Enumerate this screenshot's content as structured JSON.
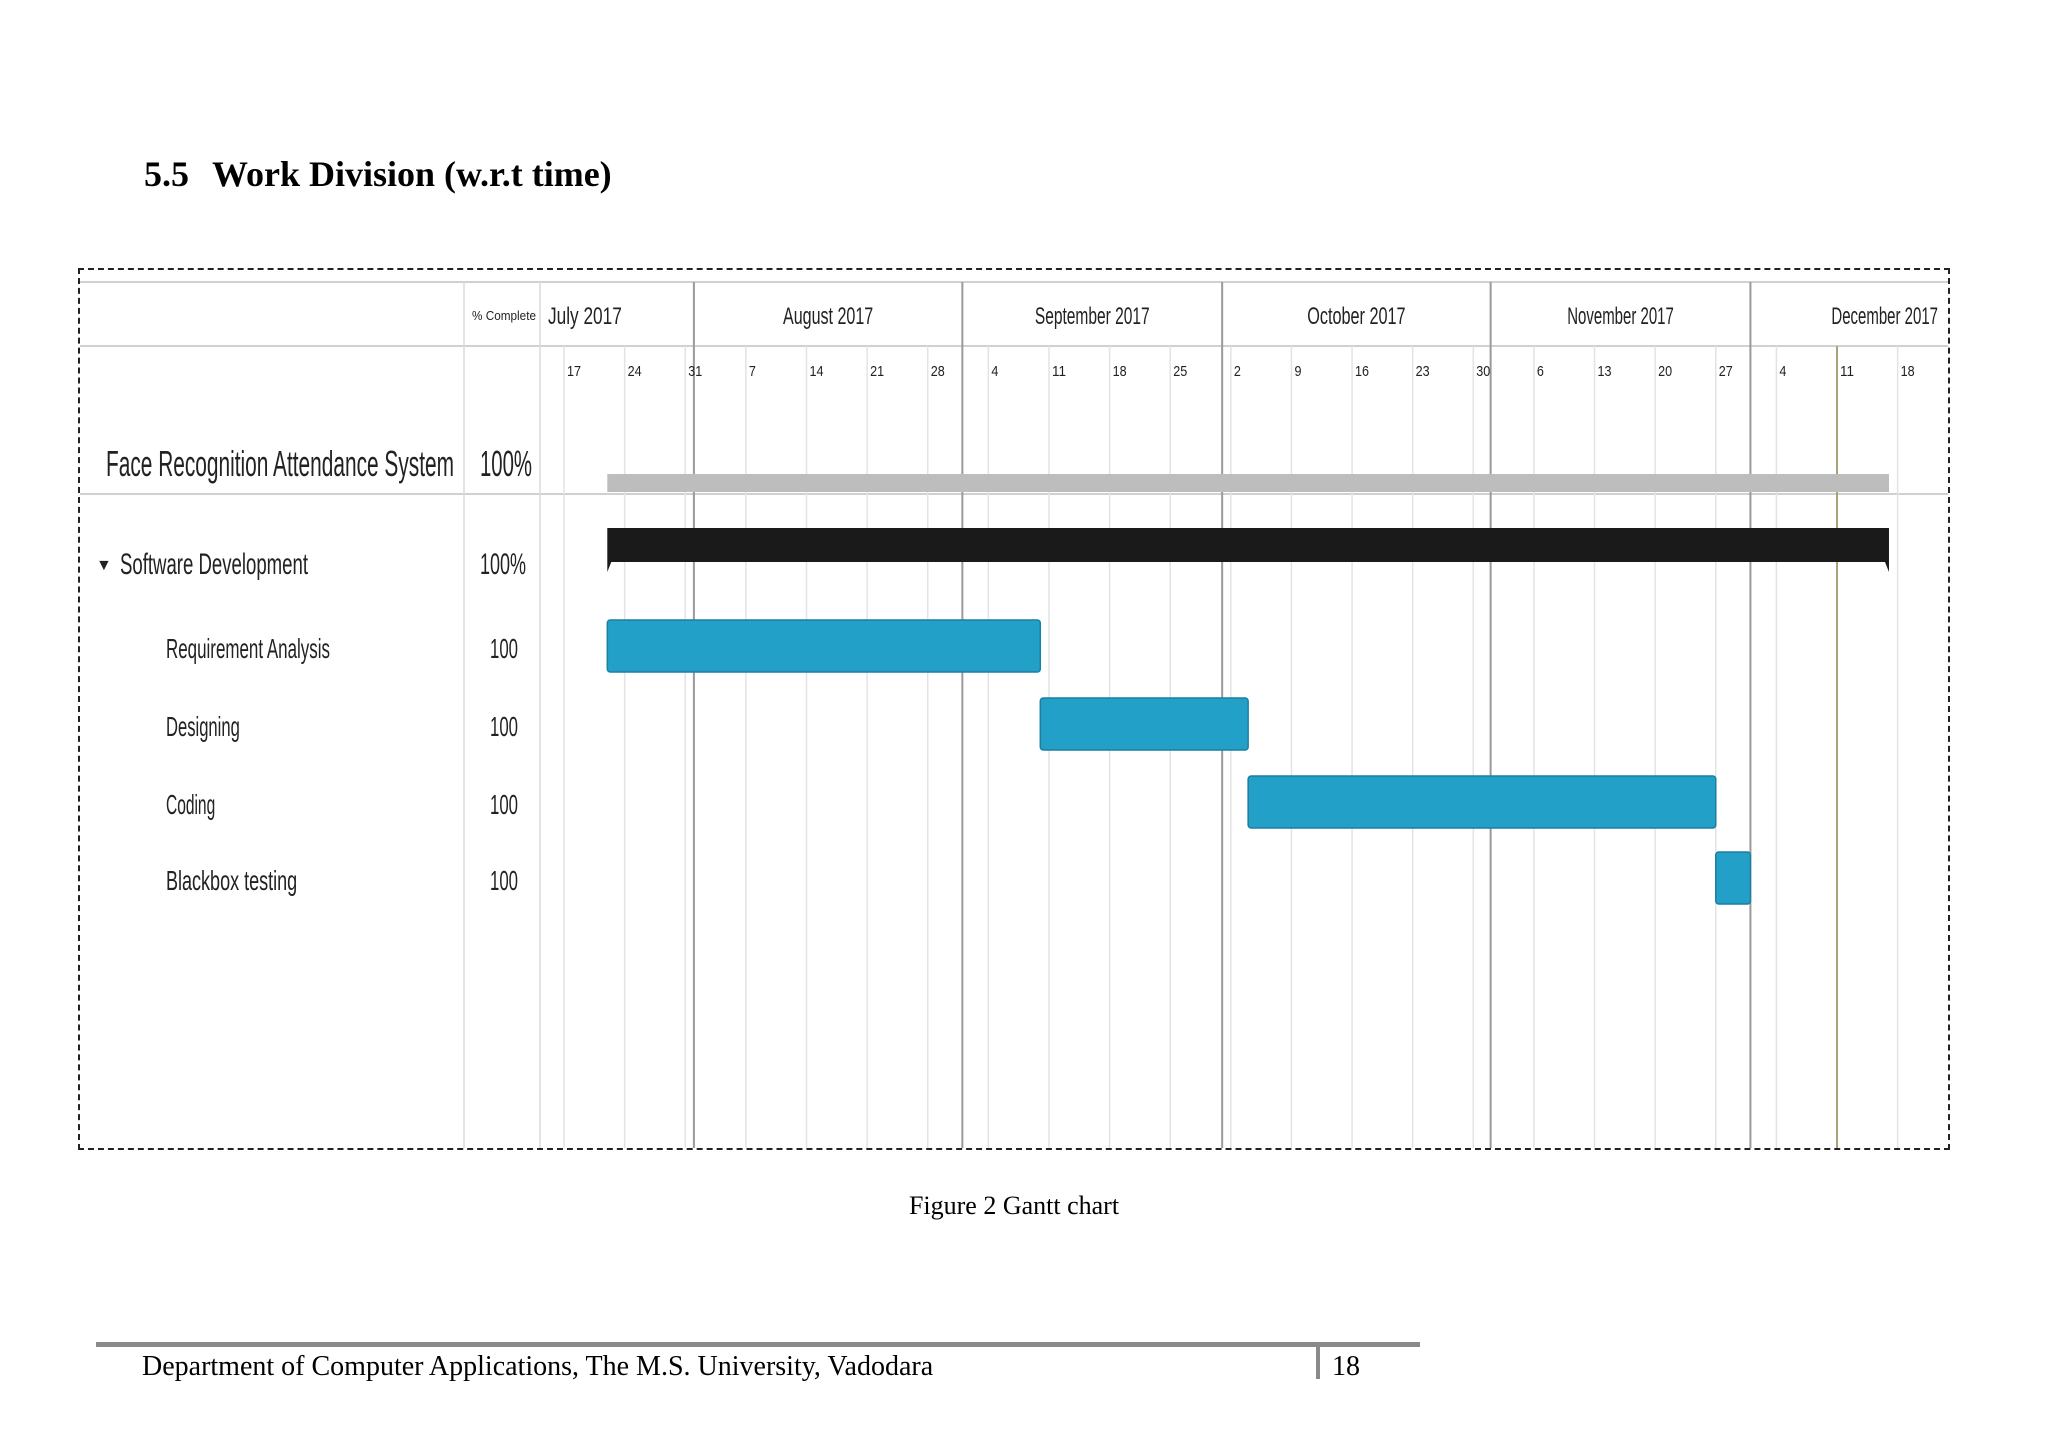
{
  "section": {
    "number": "5.5",
    "title": "Work Division (w.r.t time)"
  },
  "chart_data": {
    "type": "gantt",
    "column_header": "% Complete",
    "months": [
      "July 2017",
      "August 2017",
      "September 2017",
      "October 2017",
      "November 2017",
      "December 2017"
    ],
    "week_ticks": [
      {
        "month": "July 2017",
        "days": [
          "17",
          "24",
          "31"
        ]
      },
      {
        "month": "August 2017",
        "days": [
          "7",
          "14",
          "21",
          "28"
        ]
      },
      {
        "month": "September 2017",
        "days": [
          "4",
          "11",
          "18",
          "25"
        ]
      },
      {
        "month": "October 2017",
        "days": [
          "2",
          "9",
          "16",
          "23",
          "30"
        ]
      },
      {
        "month": "November 2017",
        "days": [
          "6",
          "13",
          "20",
          "27"
        ]
      },
      {
        "month": "December 2017",
        "days": [
          "4",
          "11",
          "18"
        ]
      }
    ],
    "project": {
      "name": "Face Recognition Attendance System",
      "complete": "100%",
      "start": "2017-07-22",
      "end": "2017-12-17",
      "color": "#bdbdbd"
    },
    "summary": {
      "name": "Software Development",
      "complete": "100%",
      "start": "2017-07-22",
      "end": "2017-12-17",
      "color": "#1a1a1a"
    },
    "tasks": [
      {
        "name": "Requirement Analysis",
        "complete": "100",
        "start": "2017-07-22",
        "end": "2017-09-10"
      },
      {
        "name": "Designing",
        "complete": "100",
        "start": "2017-09-10",
        "end": "2017-10-04"
      },
      {
        "name": "Coding",
        "complete": "100",
        "start": "2017-10-04",
        "end": "2017-11-27"
      },
      {
        "name": "Blackbox testing",
        "complete": "100",
        "start": "2017-11-27",
        "end": "2017-12-01"
      }
    ],
    "task_color": "#22a0c8",
    "today": "2017-12-11"
  },
  "caption": "Figure 2 Gantt chart",
  "footer": {
    "department": "Department of Computer Applications, The M.S. University, Vadodara",
    "page": "18"
  }
}
